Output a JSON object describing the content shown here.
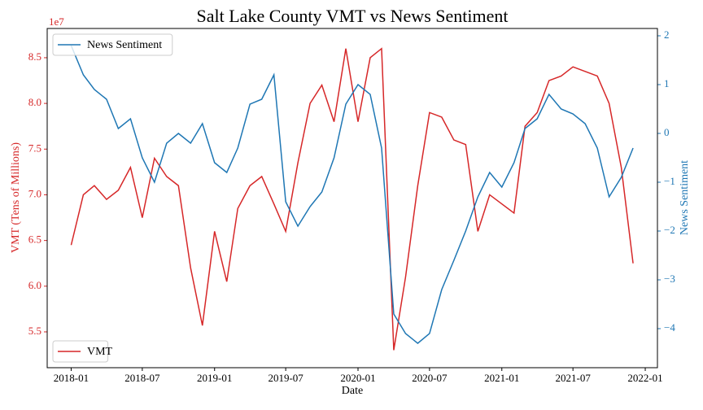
{
  "chart_data": {
    "type": "line",
    "title": "Salt Lake County VMT vs News Sentiment",
    "x_label": "Date",
    "y_label": "VMT (Tens of Millions)",
    "y2_label": "News Sentiment",
    "y_offset_label": "1e7",
    "x": [
      "2018-01",
      "2018-02",
      "2018-03",
      "2018-04",
      "2018-05",
      "2018-06",
      "2018-07",
      "2018-08",
      "2018-09",
      "2018-10",
      "2018-11",
      "2018-12",
      "2019-01",
      "2019-02",
      "2019-03",
      "2019-04",
      "2019-05",
      "2019-06",
      "2019-07",
      "2019-08",
      "2019-09",
      "2019-10",
      "2019-11",
      "2019-12",
      "2020-01",
      "2020-02",
      "2020-03",
      "2020-04",
      "2020-05",
      "2020-06",
      "2020-07",
      "2020-08",
      "2020-09",
      "2020-10",
      "2020-11",
      "2020-12",
      "2021-01",
      "2021-02",
      "2021-03",
      "2021-04",
      "2021-05",
      "2021-06",
      "2021-07",
      "2021-08",
      "2021-09",
      "2021-10",
      "2021-11",
      "2021-12"
    ],
    "series": [
      {
        "name": "VMT",
        "color": "#d62728",
        "axis": "y",
        "legend": "lower left",
        "values": [
          64500000,
          70000000,
          71000000,
          69500000,
          70500000,
          73000000,
          67500000,
          74000000,
          72000000,
          71000000,
          62000000,
          55700000,
          66000000,
          60500000,
          68500000,
          71000000,
          72000000,
          69000000,
          66000000,
          73500000,
          80000000,
          82000000,
          78000000,
          86000000,
          78000000,
          85000000,
          86000000,
          53000000,
          61000000,
          71000000,
          79000000,
          78500000,
          76000000,
          75500000,
          66000000,
          70000000,
          69000000,
          68000000,
          77500000,
          79000000,
          82500000,
          83000000,
          84000000,
          83500000,
          83000000,
          80000000,
          73000000,
          62500000
        ]
      },
      {
        "name": "News Sentiment",
        "color": "#1f77b4",
        "axis": "y2",
        "legend": "upper left",
        "values": [
          1.8,
          1.2,
          0.9,
          0.7,
          0.1,
          0.3,
          -0.5,
          -1.0,
          -0.2,
          0.0,
          -0.2,
          0.2,
          -0.6,
          -0.8,
          -0.3,
          0.6,
          0.7,
          1.2,
          -1.4,
          -1.9,
          -1.5,
          -1.2,
          -0.5,
          0.6,
          1.0,
          0.8,
          -0.3,
          -3.7,
          -4.1,
          -4.3,
          -4.1,
          -3.2,
          -2.6,
          -2.0,
          -1.3,
          -0.8,
          -1.1,
          -0.6,
          0.1,
          0.3,
          0.8,
          0.5,
          0.4,
          0.2,
          -0.3,
          -1.3,
          -0.9,
          -0.3
        ]
      }
    ],
    "xlim": [
      "2017-11",
      "2022-02"
    ],
    "xticks": [
      "2018-01",
      "2018-07",
      "2019-01",
      "2019-07",
      "2020-01",
      "2020-07",
      "2021-01",
      "2021-07",
      "2022-01"
    ],
    "ylim": [
      51080000,
      88200000
    ],
    "yticks": [
      {
        "value": 55000000,
        "label": "5.5"
      },
      {
        "value": 60000000,
        "label": "6.0"
      },
      {
        "value": 65000000,
        "label": "6.5"
      },
      {
        "value": 70000000,
        "label": "7.0"
      },
      {
        "value": 75000000,
        "label": "7.5"
      },
      {
        "value": 80000000,
        "label": "8.0"
      },
      {
        "value": 85000000,
        "label": "8.5"
      }
    ],
    "y2lim": [
      -4.8,
      2.15
    ],
    "y2ticks": [
      {
        "value": -4,
        "label": "−4"
      },
      {
        "value": -3,
        "label": "−3"
      },
      {
        "value": -2,
        "label": "−2"
      },
      {
        "value": -1,
        "label": "−1"
      },
      0,
      1,
      2
    ]
  }
}
